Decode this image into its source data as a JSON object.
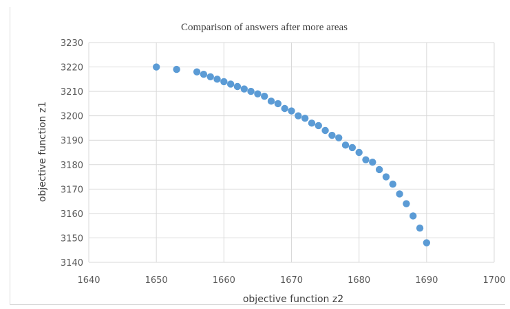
{
  "chart_data": {
    "type": "scatter",
    "title": "Comparison of answers after more areas",
    "xlabel": "objective function z2",
    "ylabel": "objective function z1",
    "xlim": [
      1640,
      1700
    ],
    "ylim": [
      3140,
      3230
    ],
    "xticks": [
      1640,
      1650,
      1660,
      1670,
      1680,
      1690,
      1700
    ],
    "yticks": [
      3140,
      3150,
      3160,
      3170,
      3180,
      3190,
      3200,
      3210,
      3220,
      3230
    ],
    "grid": true,
    "point_color": "#5b9bd5",
    "series": [
      {
        "points": [
          [
            1650,
            3220
          ],
          [
            1653,
            3219
          ],
          [
            1656,
            3218
          ],
          [
            1657,
            3217
          ],
          [
            1658,
            3216
          ],
          [
            1659,
            3215
          ],
          [
            1660,
            3214
          ],
          [
            1661,
            3213
          ],
          [
            1662,
            3212
          ],
          [
            1663,
            3211
          ],
          [
            1664,
            3210
          ],
          [
            1665,
            3209
          ],
          [
            1666,
            3208
          ],
          [
            1667,
            3206
          ],
          [
            1668,
            3205
          ],
          [
            1669,
            3203
          ],
          [
            1670,
            3202
          ],
          [
            1671,
            3200
          ],
          [
            1672,
            3199
          ],
          [
            1673,
            3197
          ],
          [
            1674,
            3196
          ],
          [
            1675,
            3194
          ],
          [
            1676,
            3192
          ],
          [
            1677,
            3191
          ],
          [
            1678,
            3188
          ],
          [
            1679,
            3187
          ],
          [
            1680,
            3185
          ],
          [
            1681,
            3182
          ],
          [
            1682,
            3181
          ],
          [
            1683,
            3178
          ],
          [
            1684,
            3175
          ],
          [
            1685,
            3172
          ],
          [
            1686,
            3168
          ],
          [
            1687,
            3164
          ],
          [
            1688,
            3159
          ],
          [
            1689,
            3154
          ],
          [
            1690,
            3148
          ]
        ]
      }
    ]
  }
}
